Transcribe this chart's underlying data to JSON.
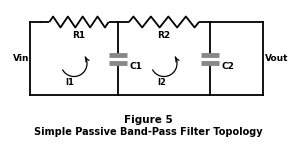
{
  "title_line1": "Figure 5",
  "title_line2": "Simple Passive Band-Pass Filter Topology",
  "background_color": "#ffffff",
  "line_color": "#000000",
  "cap_plate_color": "#888888",
  "label_R1": "R1",
  "label_R2": "R2",
  "label_C1": "C1",
  "label_C2": "C2",
  "label_Vin": "Vin",
  "label_Vout": "Vout",
  "label_I1": "I1",
  "label_I2": "I2",
  "figsize": [
    2.96,
    1.63
  ],
  "dpi": 100,
  "xlim": [
    0,
    296
  ],
  "ylim": [
    0,
    163
  ]
}
